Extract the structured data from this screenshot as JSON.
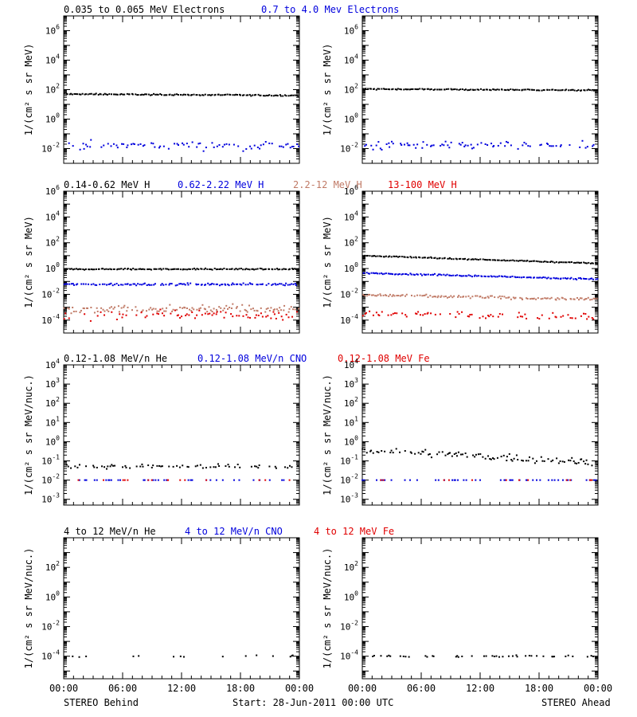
{
  "colors": {
    "black": "#000000",
    "blue": "#0000dd",
    "tan": "#c07a66",
    "red": "#e00000"
  },
  "chart_data": [
    {
      "id": "behind-electrons",
      "type": "scatter",
      "yscale": "log",
      "ylim": [
        0.001,
        10000000
      ],
      "ylabel": "1/(cm² s sr MeV)",
      "yticks": [
        {
          "v": 0.01,
          "m": "10",
          "e": "-2"
        },
        {
          "v": 1,
          "m": "10",
          "e": "0"
        },
        {
          "v": 100,
          "m": "10",
          "e": "2"
        },
        {
          "v": 10000,
          "m": "10",
          "e": "4"
        },
        {
          "v": 1000000,
          "m": "10",
          "e": "6"
        }
      ],
      "xlim": [
        0,
        24
      ],
      "series": [
        {
          "name": "0.035 to 0.065 MeV Electrons",
          "color": "#000000",
          "start": 50,
          "end": 40,
          "scatter": 0.04,
          "density": 1.0
        },
        {
          "name": "0.7 to 4.0 Mev Electrons",
          "color": "#0000dd",
          "start": 0.016,
          "end": 0.016,
          "scatter": 0.25,
          "density": 0.55
        }
      ]
    },
    {
      "id": "ahead-electrons",
      "type": "scatter",
      "yscale": "log",
      "ylim": [
        0.001,
        10000000
      ],
      "ylabel": "1/(cm² s sr MeV)",
      "yticks": [
        {
          "v": 0.01,
          "m": "10",
          "e": "-2"
        },
        {
          "v": 1,
          "m": "10",
          "e": "0"
        },
        {
          "v": 100,
          "m": "10",
          "e": "2"
        },
        {
          "v": 10000,
          "m": "10",
          "e": "4"
        },
        {
          "v": 1000000,
          "m": "10",
          "e": "6"
        }
      ],
      "xlim": [
        0,
        24
      ],
      "series": [
        {
          "name": "0.035 to 0.065 MeV Electrons",
          "color": "#000000",
          "start": 110,
          "end": 90,
          "scatter": 0.04,
          "density": 1.0
        },
        {
          "name": "0.7 to 4.0 Mev Electrons",
          "color": "#0000dd",
          "start": 0.016,
          "end": 0.016,
          "scatter": 0.25,
          "density": 0.55
        }
      ]
    },
    {
      "id": "behind-protons",
      "type": "scatter",
      "yscale": "log",
      "ylim": [
        1e-05,
        1000000
      ],
      "ylabel": "1/(cm² s sr MeV)",
      "yticks": [
        {
          "v": 0.0001,
          "m": "10",
          "e": "-4"
        },
        {
          "v": 0.01,
          "m": "10",
          "e": "-2"
        },
        {
          "v": 1,
          "m": "10",
          "e": "0"
        },
        {
          "v": 100,
          "m": "10",
          "e": "2"
        },
        {
          "v": 10000,
          "m": "10",
          "e": "4"
        },
        {
          "v": 1000000,
          "m": "10",
          "e": "6"
        }
      ],
      "xlim": [
        0,
        24
      ],
      "series": [
        {
          "name": "0.14-0.62 MeV H",
          "color": "#000000",
          "start": 0.9,
          "end": 0.9,
          "scatter": 0.05,
          "density": 1.0
        },
        {
          "name": "0.62-2.22 MeV H",
          "color": "#0000dd",
          "start": 0.06,
          "end": 0.06,
          "scatter": 0.08,
          "density": 0.9
        },
        {
          "name": "2.2-12 MeV H",
          "color": "#c07a66",
          "start": 0.0007,
          "end": 0.0007,
          "scatter": 0.3,
          "density": 0.8
        },
        {
          "name": "13-100 MeV H",
          "color": "#e00000",
          "start": 0.00025,
          "end": 0.00025,
          "scatter": 0.35,
          "density": 0.5
        }
      ]
    },
    {
      "id": "ahead-protons",
      "type": "scatter",
      "yscale": "log",
      "ylim": [
        1e-05,
        1000000
      ],
      "ylabel": "1/(cm² s sr MeV)",
      "yticks": [
        {
          "v": 0.0001,
          "m": "10",
          "e": "-4"
        },
        {
          "v": 0.01,
          "m": "10",
          "e": "-2"
        },
        {
          "v": 1,
          "m": "10",
          "e": "0"
        },
        {
          "v": 100,
          "m": "10",
          "e": "2"
        },
        {
          "v": 10000,
          "m": "10",
          "e": "4"
        },
        {
          "v": 1000000,
          "m": "10",
          "e": "6"
        }
      ],
      "xlim": [
        0,
        24
      ],
      "series": [
        {
          "name": "0.14-0.62 MeV H",
          "color": "#000000",
          "start": 10,
          "end": 2.5,
          "scatter": 0.04,
          "density": 1.0
        },
        {
          "name": "0.62-2.22 MeV H",
          "color": "#0000dd",
          "start": 0.45,
          "end": 0.15,
          "scatter": 0.05,
          "density": 1.0
        },
        {
          "name": "2.2-12 MeV H",
          "color": "#c07a66",
          "start": 0.009,
          "end": 0.004,
          "scatter": 0.1,
          "density": 0.9
        },
        {
          "name": "13-100 MeV H",
          "color": "#e00000",
          "start": 0.0003,
          "end": 0.0002,
          "scatter": 0.25,
          "density": 0.5
        }
      ]
    },
    {
      "id": "behind-heavy-low",
      "type": "scatter",
      "yscale": "log",
      "ylim": [
        0.0005,
        10000
      ],
      "ylabel": "1/(cm² s sr MeV/nuc.)",
      "yticks": [
        {
          "v": 0.001,
          "m": "10",
          "e": "-3"
        },
        {
          "v": 0.01,
          "m": "10",
          "e": "-2"
        },
        {
          "v": 0.1,
          "m": "10",
          "e": "-1"
        },
        {
          "v": 1,
          "m": "10",
          "e": "0"
        },
        {
          "v": 10,
          "m": "10",
          "e": "1"
        },
        {
          "v": 100,
          "m": "10",
          "e": "2"
        },
        {
          "v": 1000,
          "m": "10",
          "e": "3"
        },
        {
          "v": 10000,
          "m": "10",
          "e": "4"
        }
      ],
      "xlim": [
        0,
        24
      ],
      "series": [
        {
          "name": "0.12-1.08 MeV/n He",
          "color": "#000000",
          "start": 0.05,
          "end": 0.05,
          "scatter": 0.12,
          "density": 0.45
        },
        {
          "name": "0.12-1.08 MeV/n CNO",
          "color": "#0000dd",
          "start": 0.01,
          "end": 0.01,
          "scatter": 0.0,
          "density": 0.2
        },
        {
          "name": "0.12-1.08 MeV Fe",
          "color": "#e00000",
          "start": 0.01,
          "end": 0.01,
          "scatter": 0.0,
          "density": 0.15
        }
      ]
    },
    {
      "id": "ahead-heavy-low",
      "type": "scatter",
      "yscale": "log",
      "ylim": [
        0.0005,
        10000
      ],
      "ylabel": "1/(cm² s sr MeV/nuc.)",
      "yticks": [
        {
          "v": 0.001,
          "m": "10",
          "e": "-3"
        },
        {
          "v": 0.01,
          "m": "10",
          "e": "-2"
        },
        {
          "v": 0.1,
          "m": "10",
          "e": "-1"
        },
        {
          "v": 1,
          "m": "10",
          "e": "0"
        },
        {
          "v": 10,
          "m": "10",
          "e": "1"
        },
        {
          "v": 100,
          "m": "10",
          "e": "2"
        },
        {
          "v": 1000,
          "m": "10",
          "e": "3"
        },
        {
          "v": 10000,
          "m": "10",
          "e": "4"
        }
      ],
      "xlim": [
        0,
        24
      ],
      "series": [
        {
          "name": "0.12-1.08 MeV/n He",
          "color": "#000000",
          "start": 0.4,
          "end": 0.08,
          "scatter": 0.18,
          "density": 0.7
        },
        {
          "name": "0.12-1.08 MeV/n CNO",
          "color": "#0000dd",
          "start": 0.01,
          "end": 0.01,
          "scatter": 0.0,
          "density": 0.35
        },
        {
          "name": "0.12-1.08 MeV Fe",
          "color": "#e00000",
          "start": 0.01,
          "end": 0.01,
          "scatter": 0.0,
          "density": 0.08
        }
      ]
    },
    {
      "id": "behind-heavy-high",
      "type": "scatter",
      "yscale": "log",
      "ylim": [
        3e-06,
        10000
      ],
      "ylabel": "1/(cm² s sr MeV/nuc.)",
      "yticks": [
        {
          "v": 0.0001,
          "m": "10",
          "e": "-4"
        },
        {
          "v": 0.01,
          "m": "10",
          "e": "-2"
        },
        {
          "v": 1,
          "m": "10",
          "e": "0"
        },
        {
          "v": 100,
          "m": "10",
          "e": "2"
        }
      ],
      "xlim": [
        0,
        24
      ],
      "series": [
        {
          "name": "4 to 12 MeV/n He",
          "color": "#000000",
          "start": 0.0001,
          "end": 0.0001,
          "scatter": 0.08,
          "density": 0.12
        },
        {
          "name": "4 to 12 MeV/n CNO",
          "color": "#0000dd",
          "start": 1e-05,
          "end": 1e-05,
          "scatter": 0.0,
          "density": 0.0
        },
        {
          "name": "4 to 12 MeV Fe",
          "color": "#e00000",
          "start": 1e-05,
          "end": 1e-05,
          "scatter": 0.0,
          "density": 0.0
        }
      ]
    },
    {
      "id": "ahead-heavy-high",
      "type": "scatter",
      "yscale": "log",
      "ylim": [
        3e-06,
        10000
      ],
      "ylabel": "1/(cm² s sr MeV/nuc.)",
      "yticks": [
        {
          "v": 0.0001,
          "m": "10",
          "e": "-4"
        },
        {
          "v": 0.01,
          "m": "10",
          "e": "-2"
        },
        {
          "v": 1,
          "m": "10",
          "e": "0"
        },
        {
          "v": 100,
          "m": "10",
          "e": "2"
        }
      ],
      "xlim": [
        0,
        24
      ],
      "series": [
        {
          "name": "4 to 12 MeV/n He",
          "color": "#000000",
          "start": 0.0001,
          "end": 0.0001,
          "scatter": 0.06,
          "density": 0.3
        },
        {
          "name": "4 to 12 MeV/n CNO",
          "color": "#0000dd",
          "start": 1e-05,
          "end": 1e-05,
          "scatter": 0.0,
          "density": 0.0
        },
        {
          "name": "4 to 12 MeV Fe",
          "color": "#e00000",
          "start": 1e-05,
          "end": 1e-05,
          "scatter": 0.0,
          "density": 0.0
        }
      ]
    }
  ],
  "row_titles": [
    [
      {
        "text": "0.035 to 0.065 MeV Electrons",
        "color": "#000000"
      },
      {
        "text": "0.7 to 4.0 Mev Electrons",
        "color": "#0000dd"
      }
    ],
    [
      {
        "text": "0.14-0.62 MeV H",
        "color": "#000000"
      },
      {
        "text": "0.62-2.22 MeV H",
        "color": "#0000dd"
      },
      {
        "text": "2.2-12 MeV H",
        "color": "#c07a66"
      },
      {
        "text": "13-100 MeV H",
        "color": "#e00000"
      }
    ],
    [
      {
        "text": "0.12-1.08 MeV/n He",
        "color": "#000000"
      },
      {
        "text": "0.12-1.08 MeV/n CNO",
        "color": "#0000dd"
      },
      {
        "text": "0.12-1.08 MeV Fe",
        "color": "#e00000"
      }
    ],
    [
      {
        "text": "4 to 12 MeV/n He",
        "color": "#000000"
      },
      {
        "text": "4 to 12 MeV/n CNO",
        "color": "#0000dd"
      },
      {
        "text": "4 to 12 MeV Fe",
        "color": "#e00000"
      }
    ]
  ],
  "x_ticks": [
    "00:00",
    "06:00",
    "12:00",
    "18:00",
    "00:00"
  ],
  "footer": {
    "left": "STEREO Behind",
    "center": "Start: 28-Jun-2011 00:00 UTC",
    "right": "STEREO Ahead"
  }
}
